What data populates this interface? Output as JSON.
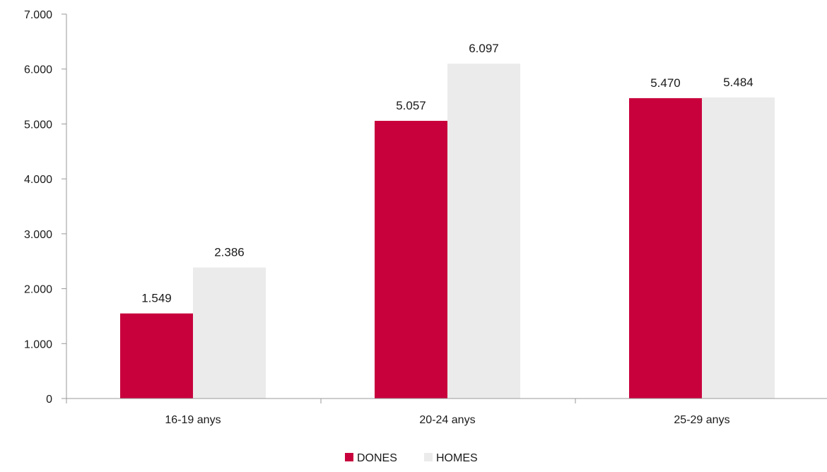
{
  "chart_data": {
    "type": "bar",
    "title": "",
    "xlabel": "",
    "ylabel": "",
    "categories": [
      "16-19 anys",
      "20-24 anys",
      "25-29 anys"
    ],
    "series": [
      {
        "name": "DONES",
        "color": "#c8003c",
        "values": [
          1549,
          5057,
          5470
        ],
        "labels": [
          "1.549",
          "5.057",
          "5.470"
        ]
      },
      {
        "name": "HOMES",
        "color": "#ebebeb",
        "values": [
          2386,
          6097,
          5484
        ],
        "labels": [
          "2.386",
          "6.097",
          "5.484"
        ]
      }
    ],
    "ylim": [
      0,
      7000
    ],
    "yticks": [
      0,
      1000,
      2000,
      3000,
      4000,
      5000,
      6000,
      7000
    ],
    "ytick_labels": [
      "0",
      "1.000",
      "2.000",
      "3.000",
      "4.000",
      "5.000",
      "6.000",
      "7.000"
    ],
    "grid": false,
    "legend_position": "bottom-center",
    "axis_color": "#999999"
  }
}
